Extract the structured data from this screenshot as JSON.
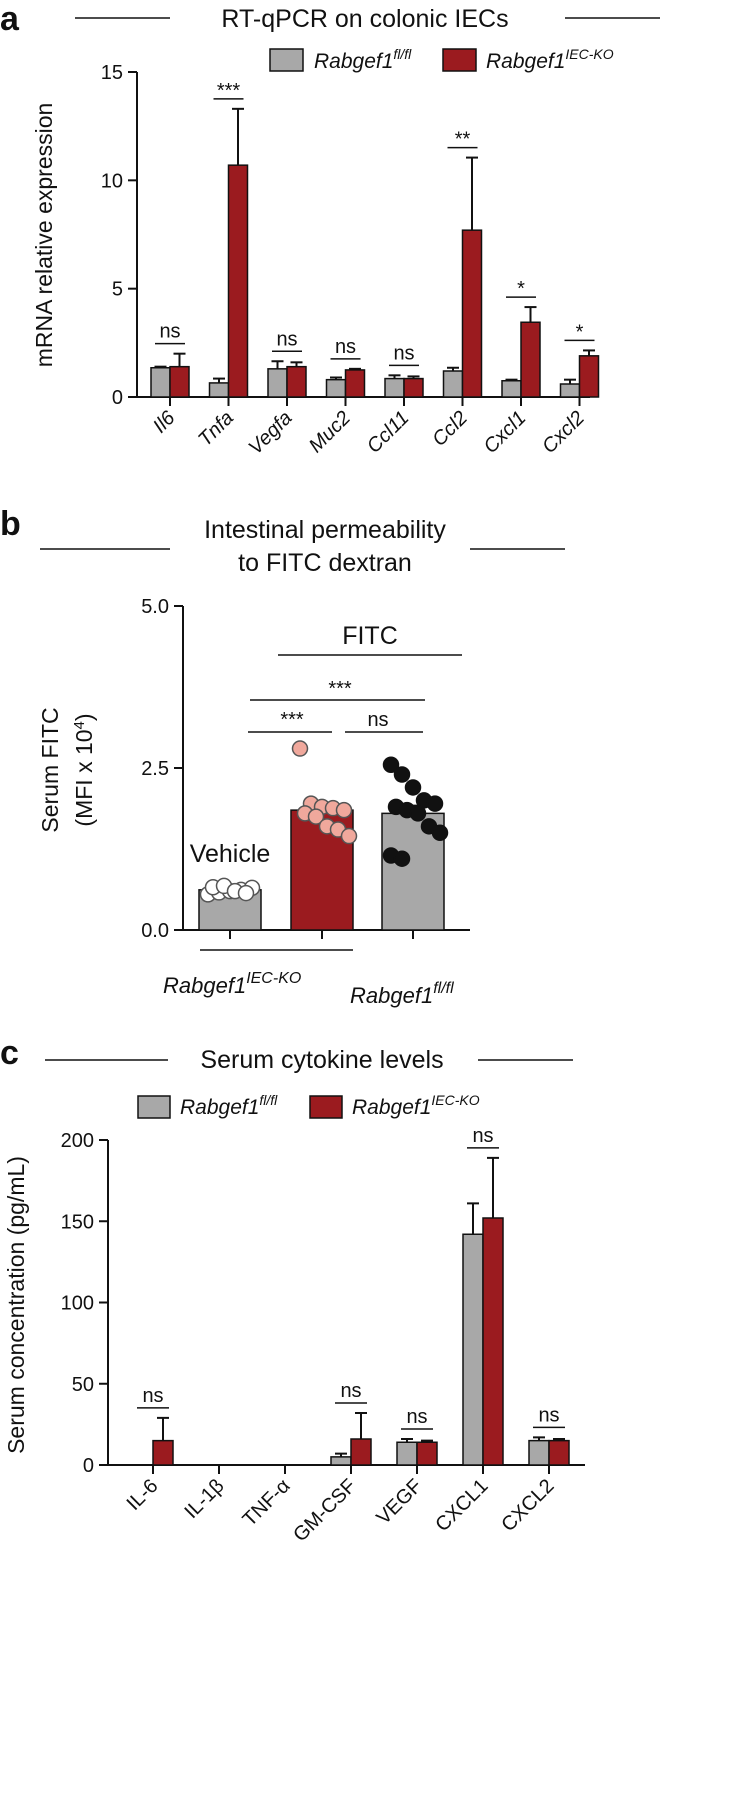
{
  "panels": {
    "a": {
      "letter": "a"
    },
    "b": {
      "letter": "b"
    },
    "c": {
      "letter": "c"
    }
  },
  "colors": {
    "fl": "#a8a8a8",
    "ko": "#9b1b1f",
    "ko_point": "#f0a89c",
    "fl_point": "#111111",
    "vehicle_point": "#ffffff"
  },
  "chart_data": [
    {
      "type": "bar",
      "panel": "a",
      "title": "RT-qPCR on colonic IECs",
      "ylabel": "mRNA relative expression",
      "ylim": [
        0,
        15
      ],
      "yticks": [
        "0",
        "5",
        "10",
        "15"
      ],
      "categories": [
        "Il6",
        "Tnfa",
        "Vegfa",
        "Muc2",
        "Ccl11",
        "Ccl2",
        "Cxcl1",
        "Cxcl2"
      ],
      "legend": {
        "position": "top-right",
        "fl": "Rabgef1",
        "fl_sup": "fl/fl",
        "ko": "Rabgef1",
        "ko_sup": "IEC-KO"
      },
      "series": [
        {
          "name": "Rabgef1 fl/fl",
          "color": "#a8a8a8",
          "values": [
            1.35,
            0.65,
            1.3,
            0.8,
            0.85,
            1.2,
            0.75,
            0.6
          ],
          "errors": [
            0.05,
            0.2,
            0.35,
            0.1,
            0.15,
            0.15,
            0.05,
            0.2
          ]
        },
        {
          "name": "Rabgef1 IEC-KO",
          "color": "#9b1b1f",
          "values": [
            1.4,
            10.7,
            1.4,
            1.25,
            0.85,
            7.7,
            3.45,
            1.9
          ],
          "errors": [
            0.6,
            2.6,
            0.2,
            0.05,
            0.1,
            3.35,
            0.7,
            0.25
          ]
        }
      ],
      "significance": [
        "ns",
        "***",
        "ns",
        "ns",
        "ns",
        "**",
        "*",
        "*"
      ]
    },
    {
      "type": "bar",
      "panel": "b",
      "title_line1": "Intestinal permeability",
      "title_line2": "to FITC dextran",
      "ylabel_line1": "Serum FITC",
      "ylabel_line2": "(MFI x 10",
      "ylabel_sup": "4",
      "ylabel_end": ")",
      "ylim": [
        0,
        5
      ],
      "yticks": [
        "0.0",
        "2.5",
        "5.0"
      ],
      "bars": [
        {
          "value": 0.62,
          "error": 0.04,
          "points": [
            0.55,
            0.58,
            0.6,
            0.62,
            0.65,
            0.66,
            0.68,
            0.6,
            0.57
          ]
        },
        {
          "value": 1.85,
          "error": 0.1,
          "points": [
            2.8,
            1.95,
            1.9,
            1.88,
            1.85,
            1.8,
            1.75,
            1.6,
            1.55,
            1.45
          ]
        },
        {
          "value": 1.8,
          "error": 0.12,
          "points": [
            2.55,
            2.4,
            2.2,
            2.0,
            1.95,
            1.9,
            1.85,
            1.8,
            1.6,
            1.5,
            1.15,
            1.1
          ]
        }
      ],
      "vehicle_label": "Vehicle",
      "fitc_label": "FITC",
      "comparisons": [
        "***",
        "***",
        "ns"
      ],
      "x_group1": "Rabgef1",
      "x_group1_sup": "IEC-KO",
      "x_group2": "Rabgef1",
      "x_group2_sup": "fl/fl"
    },
    {
      "type": "bar",
      "panel": "c",
      "title": "Serum cytokine levels",
      "ylabel": "Serum concentration (pg/mL)",
      "ylim": [
        0,
        200
      ],
      "yticks": [
        "0",
        "50",
        "100",
        "150",
        "200"
      ],
      "categories": [
        "IL-6",
        "IL-1β",
        "TNF-α",
        "GM-CSF",
        "VEGF",
        "CXCL1",
        "CXCL2"
      ],
      "legend": {
        "position": "top-left",
        "fl": "Rabgef1",
        "fl_sup": "fl/fl",
        "ko": "Rabgef1",
        "ko_sup": "IEC-KO"
      },
      "series": [
        {
          "name": "Rabgef1 fl/fl",
          "color": "#a8a8a8",
          "values": [
            0,
            0,
            0,
            5,
            14,
            142,
            15
          ],
          "errors": [
            0,
            0,
            0,
            2,
            2,
            19,
            2
          ]
        },
        {
          "name": "Rabgef1 IEC-KO",
          "color": "#9b1b1f",
          "values": [
            15,
            0,
            0,
            16,
            14,
            152,
            15
          ],
          "errors": [
            14,
            0,
            0,
            16,
            1,
            37,
            1
          ]
        }
      ],
      "significance": [
        "ns",
        "",
        "",
        "ns",
        "ns",
        "ns",
        "ns"
      ]
    }
  ]
}
